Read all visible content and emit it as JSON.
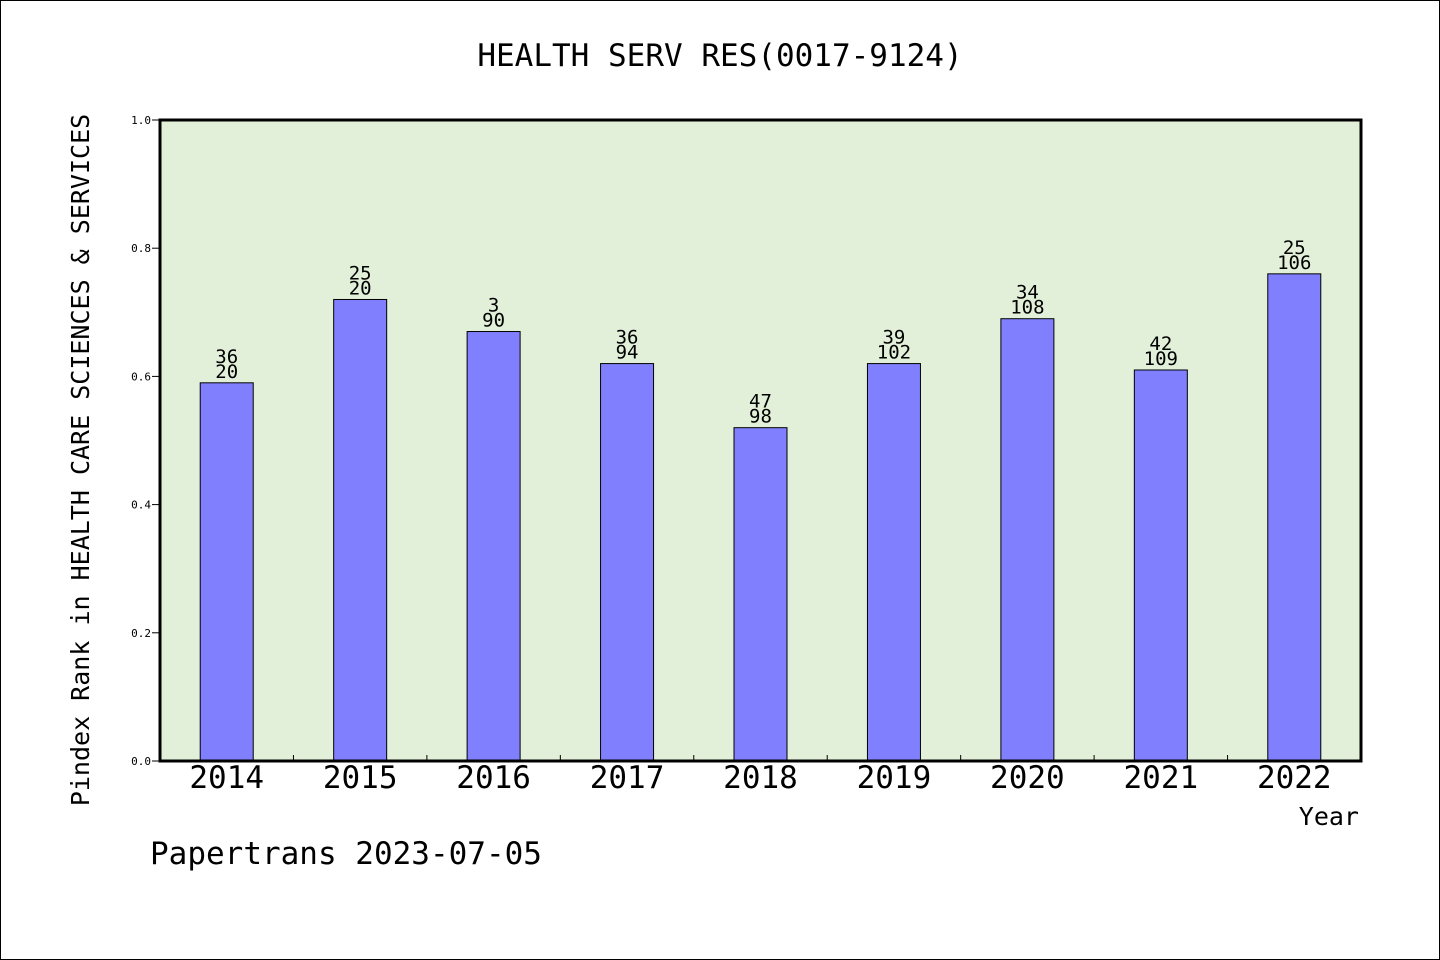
{
  "chart_data": {
    "type": "bar",
    "title": "HEALTH SERV RES(0017-9124)",
    "xlabel": "Year",
    "ylabel": "Pindex Rank in HEALTH CARE SCIENCES & SERVICES",
    "ylim": [
      0,
      1.0
    ],
    "yticks": [
      "0.0",
      "0.2",
      "0.4",
      "0.6",
      "0.8",
      "1.0"
    ],
    "categories": [
      "2014",
      "2015",
      "2016",
      "2017",
      "2018",
      "2019",
      "2020",
      "2021",
      "2022"
    ],
    "values": [
      0.59,
      0.72,
      0.67,
      0.62,
      0.52,
      0.62,
      0.69,
      0.61,
      0.76
    ],
    "label_top": [
      "36",
      "25",
      "3",
      "36",
      "47",
      "39",
      "34",
      "42",
      "25"
    ],
    "label_bottom": [
      "20",
      "20",
      "90",
      "94",
      "98",
      "102",
      "108",
      "109",
      "106"
    ],
    "grid": false,
    "plot_background": "#e2f0d9",
    "bar_color": "#8080ff"
  },
  "footer": "Papertrans 2023-07-05"
}
